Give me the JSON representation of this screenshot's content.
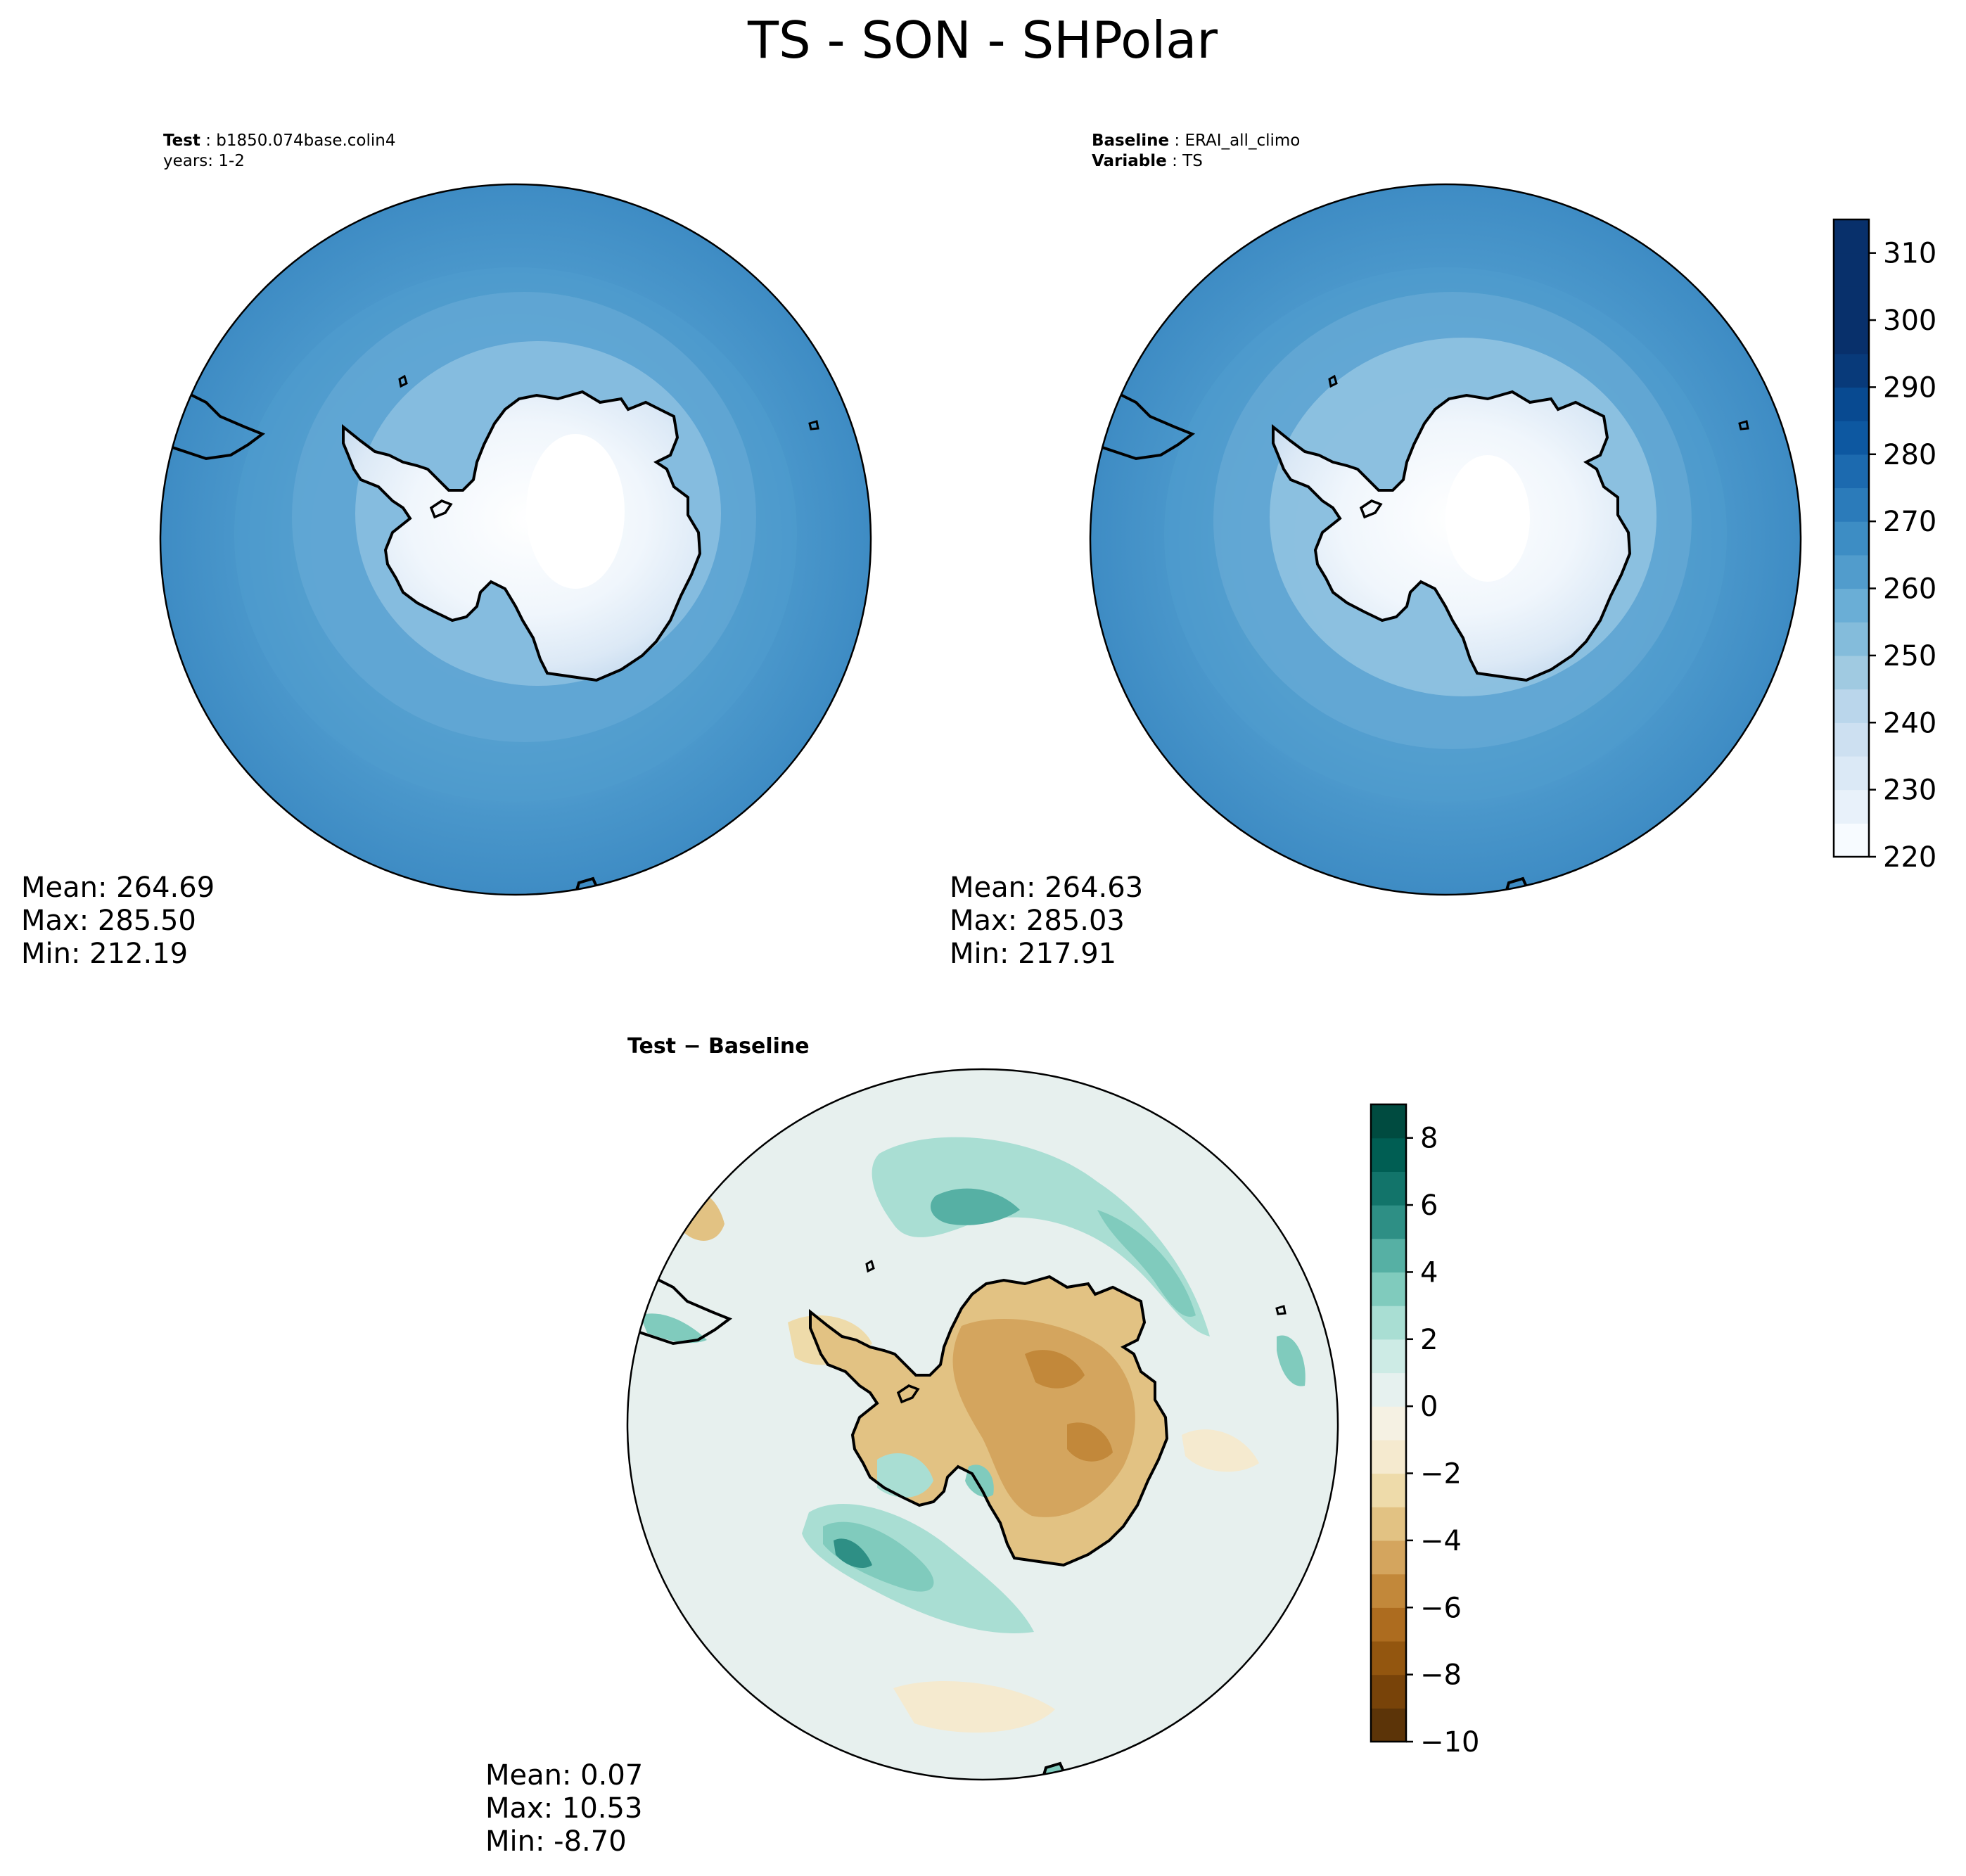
{
  "figure": {
    "title": "TS - SON - SHPolar"
  },
  "panels": {
    "test": {
      "label_bold": "Test",
      "label_value": "b1850.074base.colin4",
      "years": "years: 1-2",
      "stats": {
        "mean": "Mean: 264.69",
        "max": "Max: 285.50",
        "min": "Min: 212.19"
      }
    },
    "baseline": {
      "label_bold": "Baseline",
      "label_value": "ERAI_all_climo",
      "var_bold": "Variable",
      "var_value": "TS",
      "stats": {
        "mean": "Mean: 264.63",
        "max": "Max: 285.03",
        "min": "Min: 217.91"
      }
    },
    "diff": {
      "title": "Test − Baseline",
      "stats": {
        "mean": "Mean:  0.07",
        "max": "Max: 10.53",
        "min": "Min: -8.70"
      }
    }
  },
  "colorbars": {
    "top": {
      "ticks": [
        "220",
        "230",
        "240",
        "250",
        "260",
        "270",
        "280",
        "290",
        "300",
        "310"
      ],
      "range": [
        220,
        315
      ],
      "step": 5,
      "colors": [
        "#f7fbff",
        "#e8f1fa",
        "#dbe9f6",
        "#cde0f1",
        "#bad6eb",
        "#a0cae1",
        "#84bcdb",
        "#6aaed6",
        "#519ccc",
        "#3d8dc4",
        "#2b7bba",
        "#1c6aaf",
        "#0d58a1",
        "#084a91",
        "#083a7a",
        "#08306b",
        "#08306b",
        "#08306b",
        "#08306b"
      ]
    },
    "bottom": {
      "ticks": [
        "−10",
        "−8",
        "−6",
        "−4",
        "−2",
        "0",
        "2",
        "4",
        "6",
        "8"
      ],
      "range": [
        -10,
        9
      ],
      "step": 1,
      "colors": [
        "#5c3408",
        "#784309",
        "#93560f",
        "#ad6c1f",
        "#c2883a",
        "#d4a55e",
        "#e2c283",
        "#eedbaa",
        "#f5eacf",
        "#f5f1e3",
        "#e6f1ef",
        "#cdebe5",
        "#a9ded3",
        "#80cbbd",
        "#56b0a4",
        "#2e8f85",
        "#12746a",
        "#005e53",
        "#004b40"
      ]
    }
  },
  "map_colors": {
    "ocean_outer": "#3987c1",
    "ocean_mid": "#4a97cb",
    "ocean_inner": "#6aaed6",
    "ice_ring": "#a7cce4",
    "ice_edge": "#d3e4f3",
    "ice_interior": "#f2f8fd",
    "diff_background": "#e7f0ee",
    "diff_warm": "#d6a862",
    "diff_cold": "#83cbbd"
  }
}
